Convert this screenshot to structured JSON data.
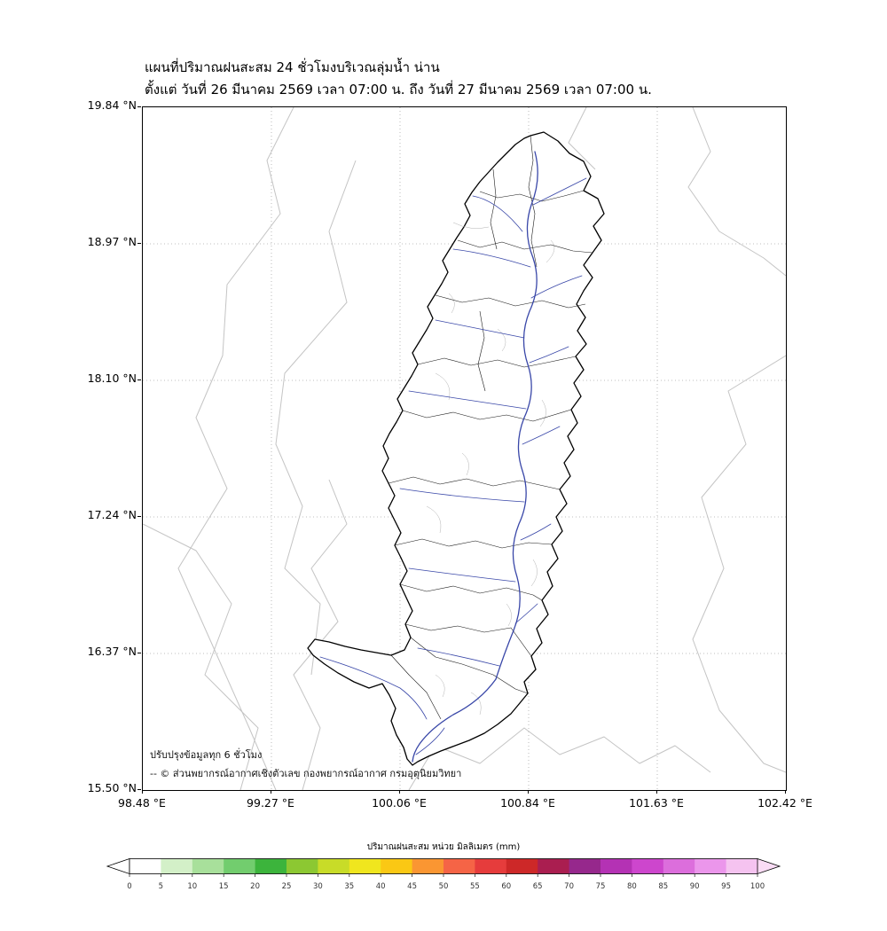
{
  "title": {
    "line1": "แผนที่ปริมาณฝนสะสม 24 ชั่วโมงบริเวณลุ่มน้ำ น่าน",
    "line2": "ตั้งแต่ วันที่ 26 มีนาคม 2569 เวลา 07:00 น. ถึง วันที่ 27 มีนาคม 2569 เวลา 07:00 น."
  },
  "axes": {
    "y_ticks": [
      "19.84 °N",
      "18.97 °N",
      "18.10 °N",
      "17.24 °N",
      "16.37 °N",
      "15.50 °N"
    ],
    "x_ticks": [
      "98.48 °E",
      "99.27 °E",
      "100.06 °E",
      "100.84 °E",
      "101.63 °E",
      "102.42 °E"
    ]
  },
  "note": {
    "line1": "ปรับปรุงข้อมูลทุก 6 ชั่วโมง",
    "line2": "-- © ส่วนพยากรณ์อากาศเชิงตัวเลข กองพยากรณ์อากาศ กรมอุตุนิยมวิทยา"
  },
  "map": {
    "region_label": "ลุ่มน้ำ น่าน",
    "colors": {
      "basin_boundary": "#000000",
      "subbasin_boundary": "#1a1a1a",
      "river": "#3947a8",
      "stream": "#a9a9a9",
      "province_boundary": "#c4c4c4",
      "grid": "#aaaaaa"
    }
  },
  "colorbar": {
    "label": "ปริมาณฝนสะสม หน่วย มิลลิเมตร (mm)",
    "ticks": [
      0,
      5,
      10,
      15,
      20,
      25,
      30,
      35,
      40,
      45,
      50,
      55,
      60,
      65,
      70,
      75,
      80,
      85,
      90,
      95,
      100
    ],
    "segment_colors": [
      "#ffffff",
      "#d3f0c8",
      "#a8e09b",
      "#72cd6e",
      "#3cb43c",
      "#8cc832",
      "#c8dc28",
      "#f0e61e",
      "#fac814",
      "#fa9632",
      "#f56446",
      "#e63c3c",
      "#cd2828",
      "#aa1e50",
      "#96288c",
      "#b432b4",
      "#cd46cd",
      "#dc6edc",
      "#eb96eb",
      "#f5c3f0"
    ],
    "under_color": "#ffffff",
    "over_color": "#fadcf5",
    "outline_color": "#000000"
  }
}
